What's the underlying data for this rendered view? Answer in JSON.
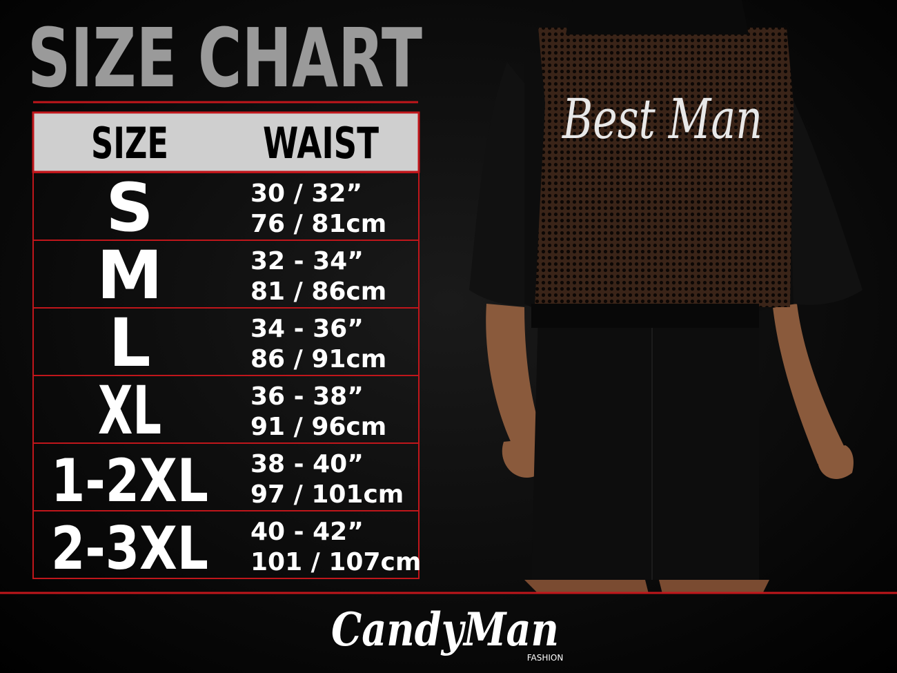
{
  "header": {
    "title": "SIZE CHART"
  },
  "table": {
    "columns": [
      "SIZE",
      "WAIST"
    ],
    "rows": [
      [
        "S",
        "30 / 32”",
        "76 / 81cm"
      ],
      [
        "M",
        "32 - 34”",
        "81 / 86cm"
      ],
      [
        "L",
        "34 - 36”",
        "86 / 91cm"
      ],
      [
        "XL",
        "36 - 38”",
        "91 / 96cm"
      ],
      [
        "1-2XL",
        "38 - 40”",
        "97 / 101cm"
      ],
      [
        "2-3XL",
        "40 - 42”",
        "101 / 107cm"
      ]
    ]
  },
  "garment": {
    "print": "Best Man"
  },
  "brand": {
    "name": "CandyMan",
    "tagline": "FASHION"
  }
}
